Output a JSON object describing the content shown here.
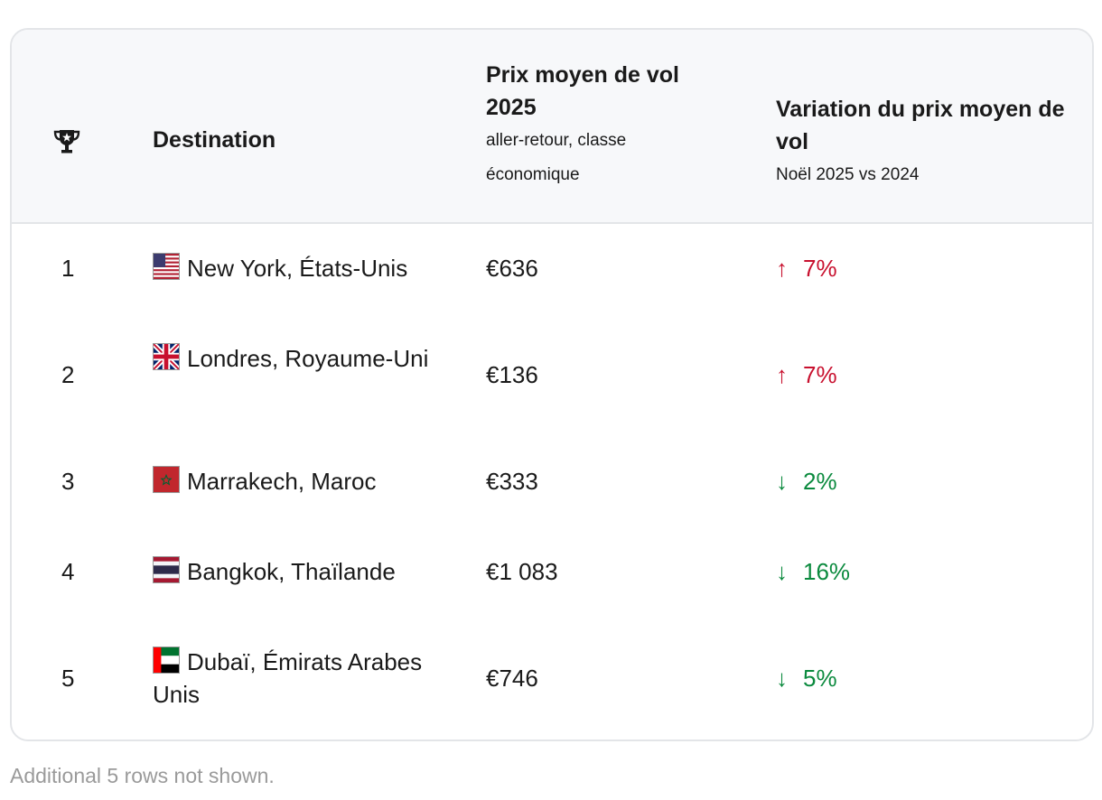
{
  "table": {
    "columns": [
      {
        "icon": "trophy-icon",
        "label": ""
      },
      {
        "label": "Destination",
        "sublabel": ""
      },
      {
        "label": "Prix moyen de vol 2025",
        "sublabel": "aller-retour, classe économique"
      },
      {
        "label": "Variation du prix moyen de vol",
        "sublabel": "Noël 2025 vs 2024"
      }
    ],
    "rows": [
      {
        "rank": "1",
        "flag": "us-flag-icon",
        "destination": "New York, États-Unis",
        "price": "€636",
        "direction": "up",
        "arrow": "↑",
        "change": "7%"
      },
      {
        "rank": "2",
        "flag": "uk-flag-icon",
        "destination": "Londres, Royaume-Uni",
        "price": "€136",
        "direction": "up",
        "arrow": "↑",
        "change": "7%"
      },
      {
        "rank": "3",
        "flag": "morocco-flag-icon",
        "destination": "Marrakech, Maroc",
        "price": "€333",
        "direction": "down",
        "arrow": "↓",
        "change": "2%"
      },
      {
        "rank": "4",
        "flag": "thailand-flag-icon",
        "destination": "Bangkok, Thaïlande",
        "price": "€1 083",
        "direction": "down",
        "arrow": "↓",
        "change": "16%"
      },
      {
        "rank": "5",
        "flag": "uae-flag-icon",
        "destination": "Dubaï, Émirats Arabes Unis",
        "price": "€746",
        "direction": "down",
        "arrow": "↓",
        "change": "5%"
      }
    ]
  },
  "colors": {
    "increase": "#c8102e",
    "decrease": "#0b8a3e",
    "header_bg": "#f7f8fa",
    "border": "#e3e5e8"
  },
  "footnote": "Additional 5 rows not shown."
}
